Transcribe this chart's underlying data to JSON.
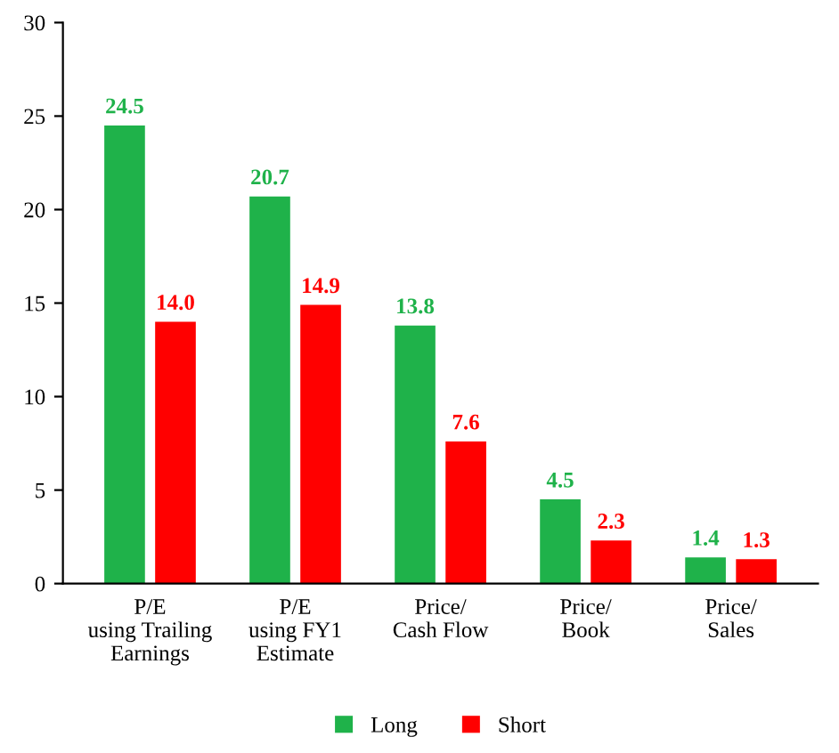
{
  "chart_data": {
    "type": "bar",
    "categories": [
      "P/E\nusing Trailing\nEarnings",
      "P/E\nusing FY1\nEstimate",
      "Price/\nCash Flow",
      "Price/\nBook",
      "Price/\nSales"
    ],
    "series": [
      {
        "name": "Long",
        "color": "#1fb24a",
        "values": [
          24.5,
          20.7,
          13.8,
          4.5,
          1.4
        ],
        "value_labels": [
          "24.5",
          "20.7",
          "13.8",
          "4.5",
          "1.4"
        ]
      },
      {
        "name": "Short",
        "color": "#ff0000",
        "values": [
          14.0,
          14.9,
          7.6,
          2.3,
          1.3
        ],
        "value_labels": [
          "14.0",
          "14.9",
          "7.6",
          "2.3",
          "1.3"
        ]
      }
    ],
    "ylim": [
      0,
      30
    ],
    "yticks": [
      0,
      5,
      10,
      15,
      20,
      25,
      30
    ],
    "grid": false,
    "legend": "bottom"
  }
}
